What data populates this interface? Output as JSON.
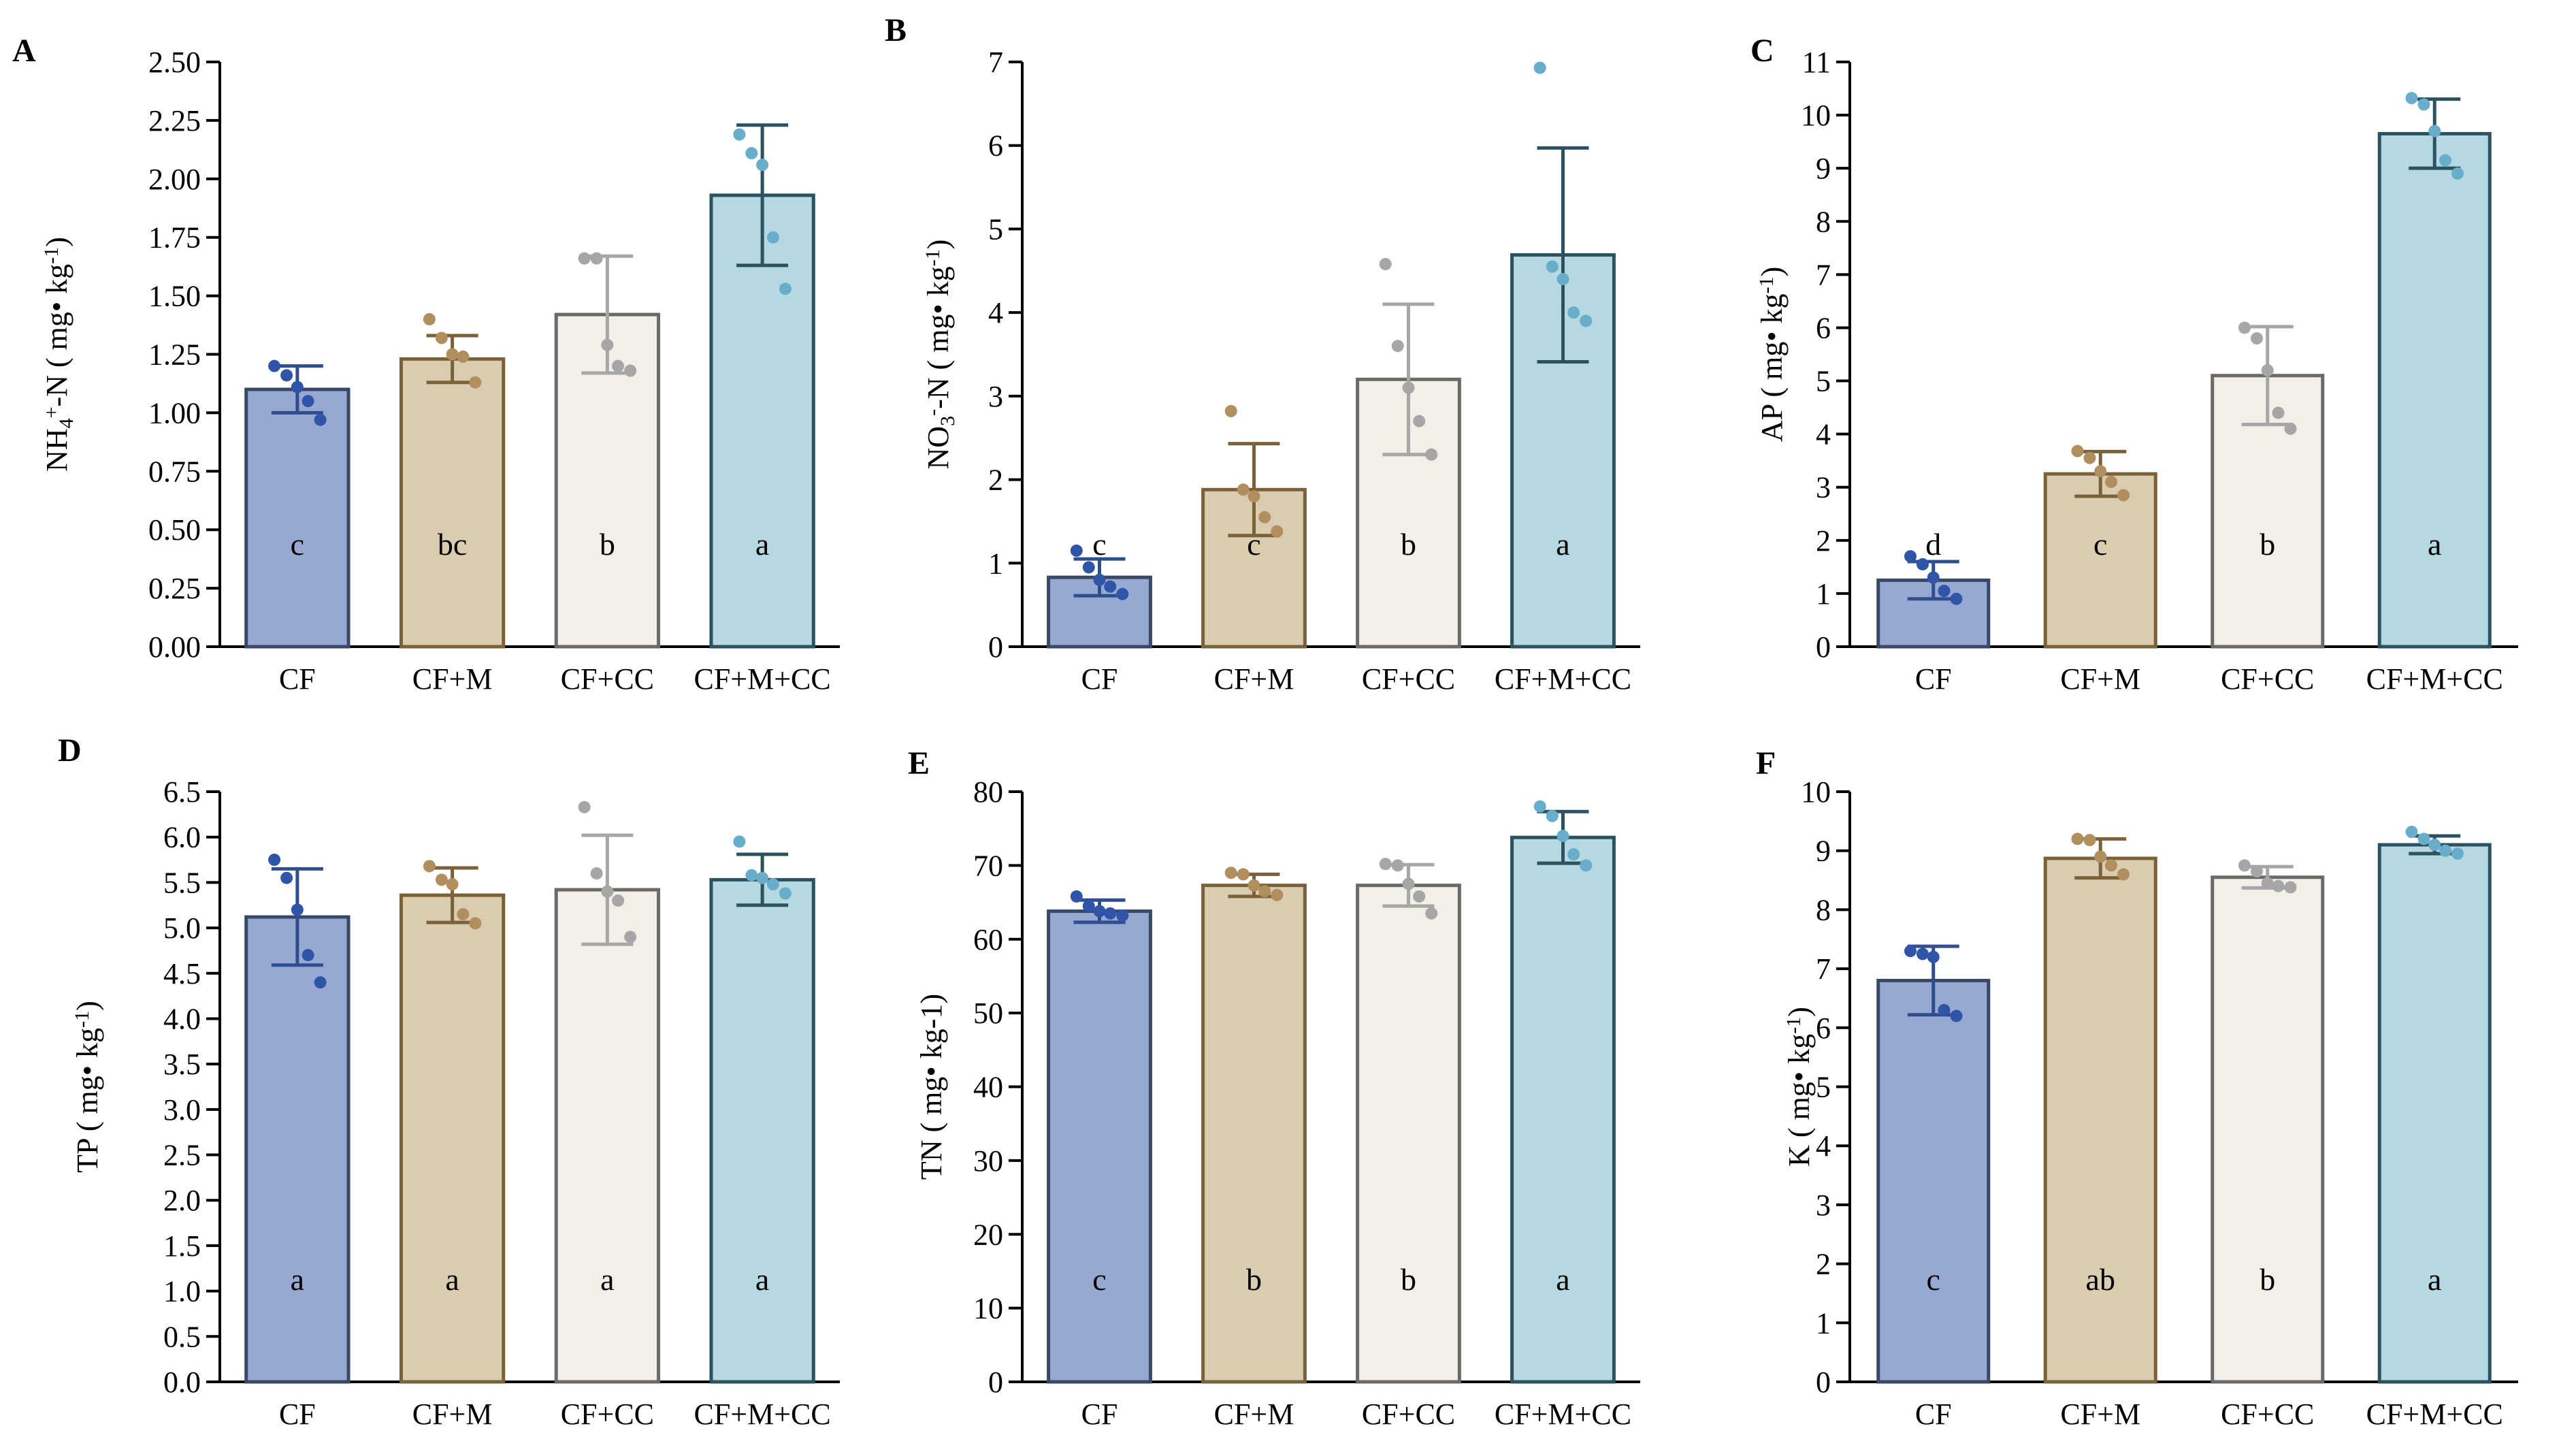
{
  "styles": {
    "bar_fills": [
      "#97a9d3",
      "#d9ccb1",
      "#f2efe9",
      "#b6d8e1"
    ],
    "bar_strokes": [
      "#3a4868",
      "#7a6138",
      "#6c6a66",
      "#2a5260"
    ],
    "point_colors": [
      "#2f55a8",
      "#b08e5e",
      "#a6a6a6",
      "#68aecb"
    ],
    "error_colors": [
      "#2f4e8e",
      "#7a6138",
      "#a6a6a6",
      "#2a5260"
    ]
  },
  "chart_data": [
    {
      "type": "bar",
      "panel": "A",
      "ylabel": {
        "parts": [
          {
            "t": "NH"
          },
          {
            "t": "4",
            "sub": true
          },
          {
            "t": "+",
            "sup": true
          },
          {
            "t": "-N ( mg"
          },
          {
            "t": "•"
          },
          {
            "t": " kg"
          },
          {
            "t": "-1",
            "sup": true
          },
          {
            "t": ")"
          }
        ]
      },
      "ylim": [
        0,
        2.5
      ],
      "yticks": [
        "0.00",
        "0.25",
        "0.50",
        "0.75",
        "1.00",
        "1.25",
        "1.50",
        "1.75",
        "2.00",
        "2.25",
        "2.50"
      ],
      "ytick_values": [
        0,
        0.25,
        0.5,
        0.75,
        1.0,
        1.25,
        1.5,
        1.75,
        2.0,
        2.25,
        2.5
      ],
      "categories": [
        "CF",
        "CF+M",
        "CF+CC",
        "CF+M+CC"
      ],
      "values": [
        1.1,
        1.23,
        1.42,
        1.93
      ],
      "errors": [
        0.1,
        0.1,
        0.25,
        0.3
      ],
      "points": [
        [
          1.2,
          1.16,
          1.11,
          1.05,
          0.97
        ],
        [
          1.4,
          1.32,
          1.25,
          1.24,
          1.13
        ],
        [
          1.66,
          1.66,
          1.29,
          1.2,
          1.18
        ],
        [
          2.19,
          2.11,
          2.06,
          1.75,
          1.53
        ]
      ],
      "letters": [
        "c",
        "bc",
        "b",
        "a"
      ]
    },
    {
      "type": "bar",
      "panel": "B",
      "ylabel": {
        "parts": [
          {
            "t": "NO"
          },
          {
            "t": "3",
            "sub": true
          },
          {
            "t": "-",
            "sup": true
          },
          {
            "t": "-N ( mg"
          },
          {
            "t": "•"
          },
          {
            "t": " kg"
          },
          {
            "t": "-1",
            "sup": true
          },
          {
            "t": ")"
          }
        ]
      },
      "ylim": [
        0,
        7
      ],
      "yticks": [
        "0",
        "1",
        "2",
        "3",
        "4",
        "5",
        "6",
        "7"
      ],
      "ytick_values": [
        0,
        1,
        2,
        3,
        4,
        5,
        6,
        7
      ],
      "categories": [
        "CF",
        "CF+M",
        "CF+CC",
        "CF+M+CC"
      ],
      "values": [
        0.83,
        1.88,
        3.2,
        4.69
      ],
      "errors": [
        0.22,
        0.55,
        0.9,
        1.28
      ],
      "points": [
        [
          1.15,
          0.95,
          0.8,
          0.72,
          0.63
        ],
        [
          2.82,
          1.88,
          1.8,
          1.55,
          1.38
        ],
        [
          4.58,
          3.6,
          3.1,
          2.7,
          2.3
        ],
        [
          6.93,
          4.55,
          4.4,
          4.0,
          3.9
        ]
      ],
      "letters": [
        "c",
        "c",
        "b",
        "a"
      ]
    },
    {
      "type": "bar",
      "panel": "C",
      "ylabel": {
        "parts": [
          {
            "t": "AP ( mg"
          },
          {
            "t": "•"
          },
          {
            "t": " kg"
          },
          {
            "t": "-1",
            "sup": true
          },
          {
            "t": ")"
          }
        ]
      },
      "ylim": [
        0,
        11
      ],
      "yticks": [
        "0",
        "1",
        "2",
        "3",
        "4",
        "5",
        "6",
        "7",
        "8",
        "9",
        "10",
        "11"
      ],
      "ytick_values": [
        0,
        1,
        2,
        3,
        4,
        5,
        6,
        7,
        8,
        9,
        10,
        11
      ],
      "categories": [
        "CF",
        "CF+M",
        "CF+CC",
        "CF+M+CC"
      ],
      "values": [
        1.25,
        3.25,
        5.1,
        9.65
      ],
      "errors": [
        0.35,
        0.42,
        0.92,
        0.65
      ],
      "points": [
        [
          1.7,
          1.55,
          1.3,
          1.05,
          0.9
        ],
        [
          3.68,
          3.55,
          3.3,
          3.1,
          2.85
        ],
        [
          6.0,
          5.8,
          5.2,
          4.4,
          4.1
        ],
        [
          10.32,
          10.2,
          9.7,
          9.15,
          8.9
        ]
      ],
      "letters": [
        "d",
        "c",
        "b",
        "a"
      ]
    },
    {
      "type": "bar",
      "panel": "D",
      "ylabel": {
        "parts": [
          {
            "t": "TP ( mg"
          },
          {
            "t": "•"
          },
          {
            "t": " kg"
          },
          {
            "t": "-1",
            "sup": true
          },
          {
            "t": ")"
          }
        ]
      },
      "ylim": [
        0,
        6.5
      ],
      "yticks": [
        "0.0",
        "0.5",
        "1.0",
        "1.5",
        "2.0",
        "2.5",
        "3.0",
        "3.5",
        "4.0",
        "4.5",
        "5.0",
        "5.5",
        "6.0",
        "6.5"
      ],
      "ytick_values": [
        0,
        0.5,
        1.0,
        1.5,
        2.0,
        2.5,
        3.0,
        3.5,
        4.0,
        4.5,
        5.0,
        5.5,
        6.0,
        6.5
      ],
      "categories": [
        "CF",
        "CF+M",
        "CF+CC",
        "CF+M+CC"
      ],
      "values": [
        5.12,
        5.36,
        5.42,
        5.53
      ],
      "errors": [
        0.53,
        0.3,
        0.6,
        0.28
      ],
      "points": [
        [
          5.75,
          5.55,
          5.2,
          4.7,
          4.4
        ],
        [
          5.68,
          5.53,
          5.48,
          5.15,
          5.05
        ],
        [
          6.33,
          5.6,
          5.4,
          5.3,
          4.9
        ],
        [
          5.95,
          5.58,
          5.55,
          5.48,
          5.38
        ]
      ],
      "letters": [
        "a",
        "a",
        "a",
        "a"
      ]
    },
    {
      "type": "bar",
      "panel": "E",
      "ylabel": {
        "parts": [
          {
            "t": "TN ( mg"
          },
          {
            "t": "•"
          },
          {
            "t": " kg-1)"
          }
        ]
      },
      "ylim": [
        0,
        80
      ],
      "yticks": [
        "0",
        "10",
        "20",
        "30",
        "40",
        "50",
        "60",
        "70",
        "80"
      ],
      "ytick_values": [
        0,
        10,
        20,
        30,
        40,
        50,
        60,
        70,
        80
      ],
      "categories": [
        "CF",
        "CF+M",
        "CF+CC",
        "CF+M+CC"
      ],
      "values": [
        63.8,
        67.3,
        67.3,
        73.8
      ],
      "errors": [
        1.5,
        1.5,
        2.8,
        3.5
      ],
      "points": [
        [
          65.8,
          64.5,
          63.8,
          63.5,
          63.2
        ],
        [
          69.0,
          68.8,
          67.3,
          66.5,
          66.0
        ],
        [
          70.2,
          70.0,
          67.5,
          65.8,
          63.5
        ],
        [
          78.0,
          76.7,
          74.0,
          71.5,
          70.0
        ]
      ],
      "letters": [
        "c",
        "b",
        "b",
        "a"
      ]
    },
    {
      "type": "bar",
      "panel": "F",
      "ylabel": {
        "parts": [
          {
            "t": "K ( mg"
          },
          {
            "t": "•"
          },
          {
            "t": " kg"
          },
          {
            "t": "-1",
            "sup": true
          },
          {
            "t": ")"
          }
        ]
      },
      "ylim": [
        0,
        10
      ],
      "yticks": [
        "0",
        "1",
        "2",
        "3",
        "4",
        "5",
        "6",
        "7",
        "8",
        "9",
        "10"
      ],
      "ytick_values": [
        0,
        1,
        2,
        3,
        4,
        5,
        6,
        7,
        8,
        9,
        10
      ],
      "categories": [
        "CF",
        "CF+M",
        "CF+CC",
        "CF+M+CC"
      ],
      "values": [
        6.8,
        8.87,
        8.55,
        9.1
      ],
      "errors": [
        0.58,
        0.33,
        0.18,
        0.15
      ],
      "points": [
        [
          7.3,
          7.25,
          7.2,
          6.3,
          6.2
        ],
        [
          9.2,
          9.18,
          8.9,
          8.75,
          8.6
        ],
        [
          8.75,
          8.65,
          8.45,
          8.4,
          8.38
        ],
        [
          9.32,
          9.2,
          9.1,
          9.0,
          8.95
        ]
      ],
      "letters": [
        "c",
        "ab",
        "b",
        "a"
      ]
    }
  ]
}
